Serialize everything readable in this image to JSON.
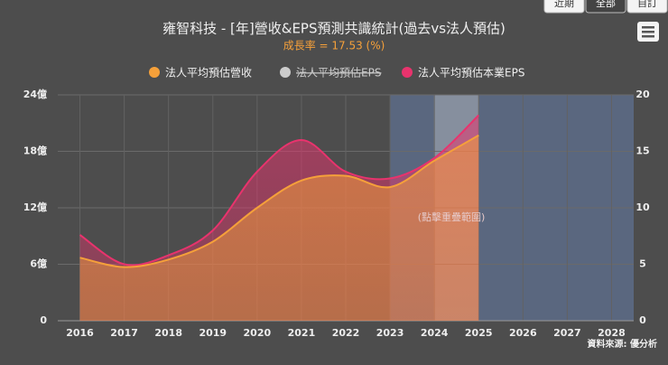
{
  "buttons": [
    "近期",
    "全部",
    "自訂"
  ],
  "chart_data": {
    "type": "line",
    "title": "雍智科技 - [年]營收&EPS預測共識統計(過去vs法人預估)",
    "subtitle": "成長率 = 17.53 (%)",
    "annotation": "(點擊重疊範圍)",
    "source": "資料來源: 優分析",
    "categories": [
      "2016",
      "2017",
      "2018",
      "2019",
      "2020",
      "2021",
      "2022",
      "2023",
      "2024",
      "2025",
      "2026",
      "2027",
      "2028"
    ],
    "series": [
      {
        "name": "法人平均預估營收",
        "color": "#f5a03a",
        "values": [
          6.7,
          5.7,
          6.5,
          8.4,
          12,
          14.9,
          15.4,
          14.2,
          17,
          19.7,
          null,
          null,
          null
        ]
      },
      {
        "name": "法人平均預估EPS",
        "color": "#cccccc",
        "hidden": true
      },
      {
        "name": "法人平均預估本業EPS",
        "color": "#e8336d",
        "axis": "y2",
        "values": [
          7.6,
          5,
          5.8,
          8,
          13.2,
          16,
          13.2,
          12.6,
          14.4,
          18.2,
          null,
          null,
          null
        ]
      }
    ],
    "ylim": [
      0,
      24
    ],
    "yticks": [
      0,
      {
        "value": 6,
        "label": "6億"
      },
      {
        "value": 12,
        "label": "12億"
      },
      {
        "value": 18,
        "label": "18億"
      },
      {
        "value": 24,
        "label": "24億"
      }
    ],
    "y2lim": [
      0,
      20
    ],
    "y2ticks": [
      0,
      5,
      10,
      15,
      20
    ],
    "grid": true
  }
}
